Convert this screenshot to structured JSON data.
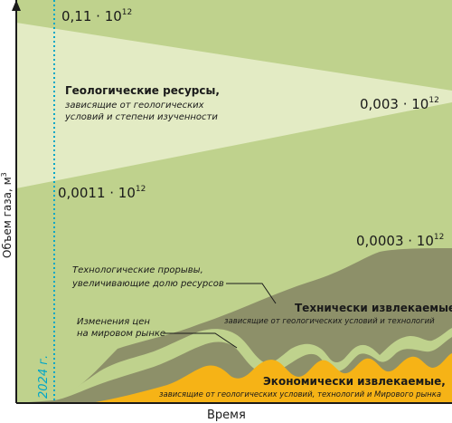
{
  "y_axis_label": "Объем газа, м",
  "y_axis_unit_sup": "3",
  "x_axis_label": "Время",
  "year_marker": "2024 г.",
  "values": {
    "top_left": "0,11 · 10",
    "right_mid": "0,003 · 10",
    "lower_left": "0,0011 · 10",
    "right_low": "0,0003 · 10",
    "exp": "12"
  },
  "geological": {
    "title": "Геологические ресурсы,",
    "line1": "зависящие от геологических",
    "line2": "условий и степени изученности"
  },
  "annotations": {
    "tech_breakthrough_1": "Технологические прорывы,",
    "tech_breakthrough_2": "увеличивающие долю ресурсов",
    "price_change_1": "Изменения цен",
    "price_change_2": "на мировом рынке"
  },
  "technical": {
    "title": "Технически извлекаемые,",
    "subtitle": "зависящие от геологических  условий и технологий"
  },
  "economic": {
    "title": "Экономически извлекаемые,",
    "subtitle": "зависящие от геологических условий, технологий и Мирового рынка"
  },
  "colors": {
    "background_green": "#bfd28d",
    "geological_wedge": "#e3ebc4",
    "technical_gray": "#8d9069",
    "economic_orange": "#f6b316",
    "marker_line": "#00a6c8",
    "axis": "#1a1a1a"
  }
}
